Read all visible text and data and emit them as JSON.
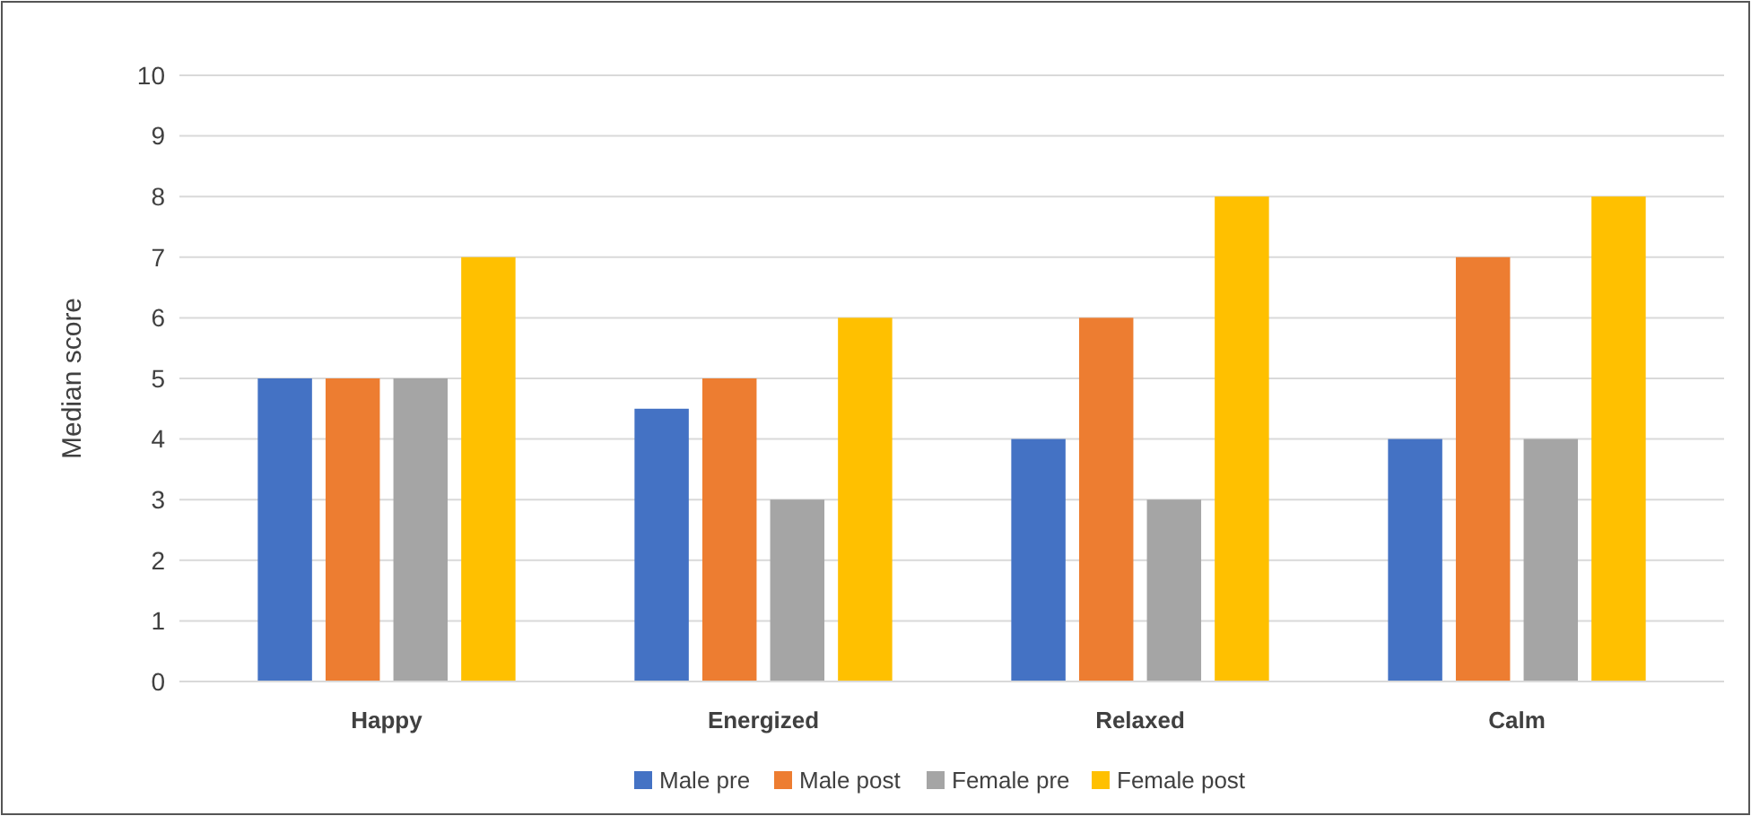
{
  "chart_data": {
    "type": "bar",
    "ylabel": "Median score",
    "categories": [
      "Happy",
      "Energized",
      "Relaxed",
      "Calm"
    ],
    "series": [
      {
        "name": "Male pre",
        "color": "#4472c4",
        "values": [
          5,
          4.5,
          4,
          4
        ]
      },
      {
        "name": "Male post",
        "color": "#ed7d31",
        "values": [
          5,
          5,
          6,
          7
        ]
      },
      {
        "name": "Female pre",
        "color": "#a5a5a5",
        "values": [
          5,
          3,
          3,
          4
        ]
      },
      {
        "name": "Female post",
        "color": "#ffc000",
        "values": [
          7,
          6,
          8,
          8
        ]
      }
    ],
    "ylim": [
      0,
      10
    ],
    "yticks": [
      0,
      1,
      2,
      3,
      4,
      5,
      6,
      7,
      8,
      9,
      10
    ],
    "grid": "y",
    "legend": "bottom"
  }
}
